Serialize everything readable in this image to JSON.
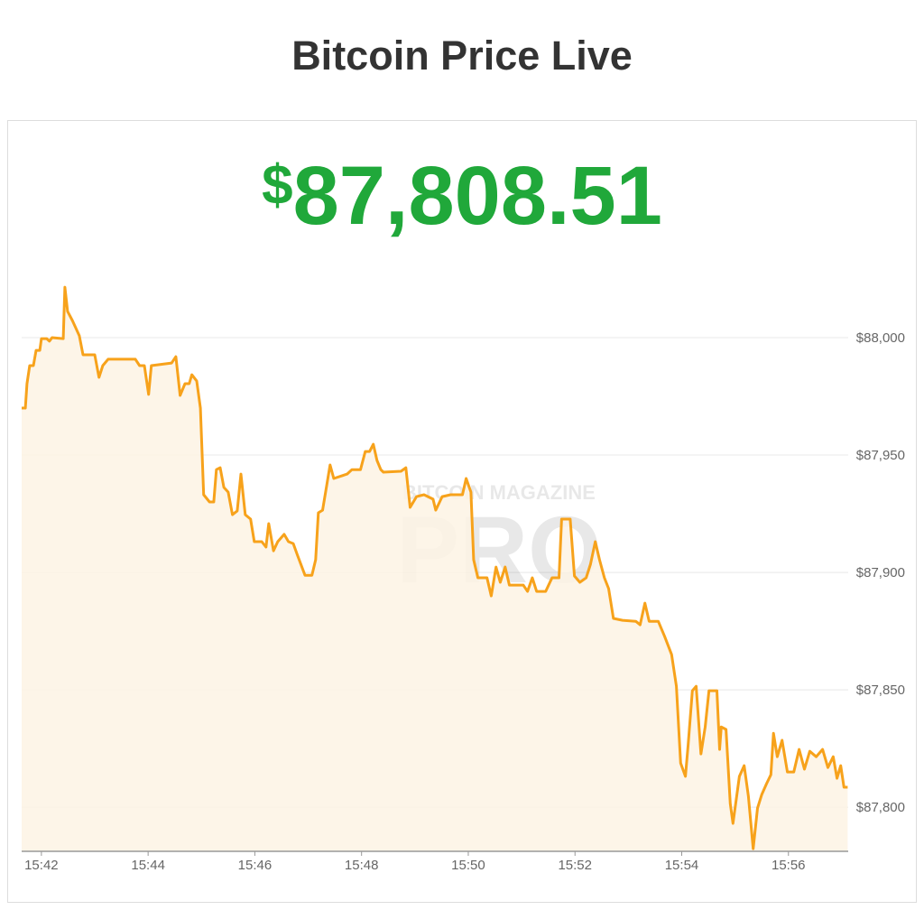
{
  "chart_data": {
    "type": "area",
    "title": "Bitcoin Price Live",
    "price": {
      "currency": "$",
      "amount": "87,808.51"
    },
    "watermark": [
      "BITCOIN MAGAZINE",
      "PRO"
    ],
    "x": [
      941.63,
      941.7,
      941.73,
      941.78,
      941.85,
      941.9,
      941.97,
      942.0,
      942.1,
      942.15,
      942.2,
      942.41,
      942.44,
      942.49,
      942.58,
      942.71,
      942.78,
      943.0,
      943.08,
      943.15,
      943.25,
      943.76,
      943.84,
      943.93,
      944.01,
      944.06,
      944.44,
      944.52,
      944.6,
      944.69,
      944.77,
      944.82,
      944.91,
      944.98,
      945.04,
      945.15,
      945.23,
      945.28,
      945.35,
      945.42,
      945.5,
      945.58,
      945.67,
      945.74,
      945.82,
      945.92,
      945.99,
      946.13,
      946.21,
      946.26,
      946.35,
      946.43,
      946.55,
      946.63,
      946.72,
      946.8,
      946.94,
      947.07,
      947.14,
      947.19,
      947.27,
      947.34,
      947.41,
      947.48,
      947.73,
      947.82,
      947.98,
      948.07,
      948.15,
      948.22,
      948.29,
      948.36,
      948.41,
      948.74,
      948.83,
      948.91,
      949.03,
      949.17,
      949.34,
      949.39,
      949.51,
      949.67,
      949.89,
      949.96,
      950.05,
      950.1,
      950.18,
      950.35,
      950.43,
      950.52,
      950.6,
      950.69,
      950.77,
      951.03,
      951.11,
      951.2,
      951.28,
      951.45,
      951.57,
      951.7,
      951.75,
      951.91,
      951.99,
      952.09,
      952.21,
      952.29,
      952.38,
      952.46,
      952.55,
      952.63,
      952.72,
      952.89,
      953.14,
      953.22,
      953.31,
      953.39,
      953.56,
      953.68,
      953.81,
      953.9,
      953.98,
      954.07,
      954.12,
      954.2,
      954.27,
      954.36,
      954.44,
      954.51,
      954.66,
      954.71,
      954.74,
      954.83,
      954.91,
      954.96,
      955.08,
      955.17,
      955.25,
      955.34,
      955.42,
      955.5,
      955.59,
      955.67,
      955.72,
      955.79,
      955.88,
      955.98,
      956.1,
      956.2,
      956.3,
      956.4,
      956.52,
      956.64,
      956.74,
      956.84,
      956.91,
      956.98,
      957.04,
      957.11
    ],
    "series": [
      {
        "color": "#f7a21b",
        "fill": "#fdf3e4",
        "values": [
          87970.0,
          87970.0,
          87980.4,
          87988.1,
          87988.1,
          87994.6,
          87994.6,
          87999.6,
          87999.6,
          87998.5,
          88000.0,
          87999.6,
          88021.5,
          88011.2,
          88007.3,
          88000.8,
          87992.7,
          87992.7,
          87983.1,
          87988.1,
          87990.8,
          87990.8,
          87988.1,
          87988.1,
          87975.8,
          87988.1,
          87989.2,
          87991.9,
          87975.4,
          87980.4,
          87980.4,
          87984.2,
          87981.5,
          87970.0,
          87933.1,
          87930.0,
          87930.0,
          87943.8,
          87944.6,
          87936.2,
          87934.2,
          87924.6,
          87926.2,
          87941.9,
          87924.6,
          87922.7,
          87913.1,
          87913.1,
          87910.8,
          87920.8,
          87909.2,
          87913.1,
          87916.2,
          87913.1,
          87912.3,
          87907.3,
          87898.8,
          87898.8,
          87905.4,
          87925.4,
          87926.5,
          87936.2,
          87945.8,
          87940.0,
          87941.9,
          87943.8,
          87943.8,
          87951.5,
          87951.5,
          87954.6,
          87947.7,
          87943.8,
          87942.7,
          87943.1,
          87944.6,
          87927.7,
          87932.3,
          87933.1,
          87931.2,
          87926.5,
          87932.3,
          87933.1,
          87933.1,
          87940.0,
          87934.2,
          87905.4,
          87897.7,
          87897.7,
          87890.0,
          87902.3,
          87895.8,
          87902.3,
          87894.6,
          87894.6,
          87891.9,
          87897.7,
          87891.9,
          87891.9,
          87897.7,
          87897.7,
          87922.7,
          87922.7,
          87898.5,
          87895.8,
          87897.7,
          87903.5,
          87913.1,
          87905.4,
          87897.7,
          87893.1,
          87880.4,
          87879.6,
          87879.2,
          87877.7,
          87886.9,
          87879.2,
          87879.2,
          87872.7,
          87865.0,
          87851.5,
          87818.8,
          87813.1,
          87826.5,
          87849.6,
          87851.5,
          87822.7,
          87834.2,
          87849.6,
          87849.6,
          87824.6,
          87834.2,
          87833.1,
          87801.5,
          87793.1,
          87813.1,
          87817.7,
          87804.6,
          87782.3,
          87799.6,
          87805.4,
          87810.0,
          87813.8,
          87831.5,
          87821.5,
          87828.5,
          87815.0,
          87815.0,
          87824.6,
          87816.2,
          87823.8,
          87821.5,
          87824.6,
          87816.9,
          87821.5,
          87812.3,
          87817.7,
          87808.5,
          87808.5
        ]
      }
    ],
    "xlim": [
      941.63,
      957.12
    ],
    "ylim": [
      87781.2,
      88030
    ],
    "xticks": [
      {
        "value": 942,
        "label": "15:42"
      },
      {
        "value": 944,
        "label": "15:44"
      },
      {
        "value": 946,
        "label": "15:46"
      },
      {
        "value": 948,
        "label": "15:48"
      },
      {
        "value": 950,
        "label": "15:50"
      },
      {
        "value": 952,
        "label": "15:52"
      },
      {
        "value": 954,
        "label": "15:54"
      },
      {
        "value": 956,
        "label": "15:56"
      }
    ],
    "yticks": [
      {
        "value": 87800,
        "label": "$87,800"
      },
      {
        "value": 87850,
        "label": "$87,850"
      },
      {
        "value": 87900,
        "label": "$87,900"
      },
      {
        "value": 87950,
        "label": "$87,950"
      },
      {
        "value": 88000,
        "label": "$88,000"
      }
    ],
    "grid": true,
    "price_color": "#20a83a"
  }
}
